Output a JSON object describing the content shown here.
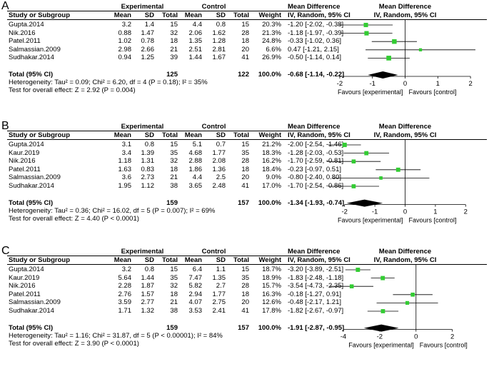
{
  "header": {
    "experimental": "Experimental",
    "control": "Control",
    "md_title": "Mean Difference",
    "study": "Study or Subgroup",
    "mean": "Mean",
    "sd": "SD",
    "total": "Total",
    "weight": "Weight",
    "method": "IV, Random, 95% CI"
  },
  "colors": {
    "marker": "#33cc33",
    "diamond": "#000000"
  },
  "chart_data": [
    {
      "type": "forest",
      "panel_label": "A",
      "rows": [
        {
          "study": "Gupta.2014",
          "e_mean": "3.2",
          "e_sd": "1.4",
          "e_total": "15",
          "c_mean": "4.4",
          "c_sd": "0.8",
          "c_total": "15",
          "weight": "20.3%",
          "ci_text": "-1.20 [-2.02, -0.38]",
          "md": -1.2,
          "lo": -2.02,
          "hi": -0.38
        },
        {
          "study": "Nik.2016",
          "e_mean": "0.88",
          "e_sd": "1.47",
          "e_total": "32",
          "c_mean": "2.06",
          "c_sd": "1.62",
          "c_total": "28",
          "weight": "21.3%",
          "ci_text": "-1.18 [-1.97, -0.39]",
          "md": -1.18,
          "lo": -1.97,
          "hi": -0.39
        },
        {
          "study": "Patel.2011",
          "e_mean": "1.02",
          "e_sd": "0.78",
          "e_total": "18",
          "c_mean": "1.35",
          "c_sd": "1.28",
          "c_total": "18",
          "weight": "24.8%",
          "ci_text": "-0.33 [-1.02, 0.36]",
          "md": -0.33,
          "lo": -1.02,
          "hi": 0.36
        },
        {
          "study": "Salmassian.2009",
          "e_mean": "2.98",
          "e_sd": "2.66",
          "e_total": "21",
          "c_mean": "2.51",
          "c_sd": "2.81",
          "c_total": "20",
          "weight": "6.6%",
          "ci_text": "0.47 [-1.21, 2.15]",
          "md": 0.47,
          "lo": -1.21,
          "hi": 2.15
        },
        {
          "study": "Sudhakar.2014",
          "e_mean": "0.94",
          "e_sd": "1.25",
          "e_total": "39",
          "c_mean": "1.44",
          "c_sd": "1.67",
          "c_total": "41",
          "weight": "26.9%",
          "ci_text": "-0.50 [-1.14, 0.14]",
          "md": -0.5,
          "lo": -1.14,
          "hi": 0.14
        }
      ],
      "total": {
        "label": "Total (95% CI)",
        "e_total": "125",
        "c_total": "122",
        "weight": "100.0%",
        "ci_text": "-0.68 [-1.14, -0.22]",
        "md": -0.68,
        "lo": -1.14,
        "hi": -0.22
      },
      "heterogeneity": "Heterogeneity: Tau² = 0.09; Chi² = 6.20, df = 4 (P = 0.18); I² = 35%",
      "overall_effect": "Test for overall effect: Z = 2.92 (P = 0.004)",
      "xlim": [
        -2.5,
        2.5
      ],
      "xticks": [
        -2,
        -1,
        0,
        1,
        2
      ],
      "xtick_labels": [
        "-2",
        "-1",
        "0",
        "1",
        "2"
      ],
      "favours_left": "Favours [experimental]",
      "favours_right": "Favours [control]"
    },
    {
      "type": "forest",
      "panel_label": "B",
      "rows": [
        {
          "study": "Gupta.2014",
          "e_mean": "3.1",
          "e_sd": "0.8",
          "e_total": "15",
          "c_mean": "5.1",
          "c_sd": "0.7",
          "c_total": "15",
          "weight": "21.2%",
          "ci_text": "-2.00 [-2.54, -1.46]",
          "md": -2.0,
          "lo": -2.54,
          "hi": -1.46
        },
        {
          "study": "Kaur.2019",
          "e_mean": "3.4",
          "e_sd": "1.39",
          "e_total": "35",
          "c_mean": "4.68",
          "c_sd": "1.77",
          "c_total": "35",
          "weight": "18.3%",
          "ci_text": "-1.28 [-2.03, -0.53]",
          "md": -1.28,
          "lo": -2.03,
          "hi": -0.53
        },
        {
          "study": "Nik.2016",
          "e_mean": "1.18",
          "e_sd": "1.31",
          "e_total": "32",
          "c_mean": "2.88",
          "c_sd": "2.08",
          "c_total": "28",
          "weight": "16.2%",
          "ci_text": "-1.70 [-2.59, -0.81]",
          "md": -1.7,
          "lo": -2.59,
          "hi": -0.81
        },
        {
          "study": "Patel.2011",
          "e_mean": "1.63",
          "e_sd": "0.83",
          "e_total": "18",
          "c_mean": "1.86",
          "c_sd": "1.36",
          "c_total": "18",
          "weight": "18.4%",
          "ci_text": "-0.23 [-0.97, 0.51]",
          "md": -0.23,
          "lo": -0.97,
          "hi": 0.51
        },
        {
          "study": "Salmassian.2009",
          "e_mean": "3.6",
          "e_sd": "2.73",
          "e_total": "21",
          "c_mean": "4.4",
          "c_sd": "2.5",
          "c_total": "20",
          "weight": "9.0%",
          "ci_text": "-0.80 [-2.40, 0.80]",
          "md": -0.8,
          "lo": -2.4,
          "hi": 0.8
        },
        {
          "study": "Sudhakar.2014",
          "e_mean": "1.95",
          "e_sd": "1.12",
          "e_total": "38",
          "c_mean": "3.65",
          "c_sd": "2.48",
          "c_total": "41",
          "weight": "17.0%",
          "ci_text": "-1.70 [-2.54, -0.86]",
          "md": -1.7,
          "lo": -2.54,
          "hi": -0.86
        }
      ],
      "total": {
        "label": "Total (95% CI)",
        "e_total": "159",
        "c_total": "157",
        "weight": "100.0%",
        "ci_text": "-1.34 [-1.93, -0.74]",
        "md": -1.34,
        "lo": -1.93,
        "hi": -0.74
      },
      "heterogeneity": "Heterogeneity: Tau² = 0.36; Chi² = 16.02, df = 5 (P = 0.007); I² = 69%",
      "overall_effect": "Test for overall effect: Z = 4.40 (P < 0.0001)",
      "xlim": [
        -2.7,
        2.7
      ],
      "xticks": [
        -2,
        -1,
        0,
        1,
        2
      ],
      "xtick_labels": [
        "-2",
        "-1",
        "0",
        "1",
        "2"
      ],
      "favours_left": "Favours [experimental]",
      "favours_right": "Favours [control]"
    },
    {
      "type": "forest",
      "panel_label": "C",
      "rows": [
        {
          "study": "Gupta.2014",
          "e_mean": "3.2",
          "e_sd": "0.8",
          "e_total": "15",
          "c_mean": "6.4",
          "c_sd": "1.1",
          "c_total": "15",
          "weight": "18.7%",
          "ci_text": "-3.20 [-3.89, -2.51]",
          "md": -3.2,
          "lo": -3.89,
          "hi": -2.51
        },
        {
          "study": "Kaur.2019",
          "e_mean": "5.64",
          "e_sd": "1.44",
          "e_total": "35",
          "c_mean": "7.47",
          "c_sd": "1.35",
          "c_total": "35",
          "weight": "18.9%",
          "ci_text": "-1.83 [-2.48, -1.18]",
          "md": -1.83,
          "lo": -2.48,
          "hi": -1.18
        },
        {
          "study": "Nik.2016",
          "e_mean": "2.28",
          "e_sd": "1.87",
          "e_total": "32",
          "c_mean": "5.82",
          "c_sd": "2.7",
          "c_total": "28",
          "weight": "15.7%",
          "ci_text": "-3.54 [-4.73, -2.35]",
          "md": -3.54,
          "lo": -4.73,
          "hi": -2.35
        },
        {
          "study": "Patel.2011",
          "e_mean": "2.76",
          "e_sd": "1.57",
          "e_total": "18",
          "c_mean": "2.94",
          "c_sd": "1.77",
          "c_total": "18",
          "weight": "16.3%",
          "ci_text": "-0.18 [-1.27, 0.91]",
          "md": -0.18,
          "lo": -1.27,
          "hi": 0.91
        },
        {
          "study": "Salmassian.2009",
          "e_mean": "3.59",
          "e_sd": "2.77",
          "e_total": "21",
          "c_mean": "4.07",
          "c_sd": "2.75",
          "c_total": "20",
          "weight": "12.6%",
          "ci_text": "-0.48 [-2.17, 1.21]",
          "md": -0.48,
          "lo": -2.17,
          "hi": 1.21
        },
        {
          "study": "Sudhakar.2014",
          "e_mean": "1.71",
          "e_sd": "1.32",
          "e_total": "38",
          "c_mean": "3.53",
          "c_sd": "2.41",
          "c_total": "41",
          "weight": "17.8%",
          "ci_text": "-1.82 [-2.67, -0.97]",
          "md": -1.82,
          "lo": -2.67,
          "hi": -0.97
        }
      ],
      "total": {
        "label": "Total (95% CI)",
        "e_total": "159",
        "c_total": "157",
        "weight": "100.0%",
        "ci_text": "-1.91 [-2.87, -0.95]",
        "md": -1.91,
        "lo": -2.87,
        "hi": -0.95
      },
      "heterogeneity": "Heterogeneity: Tau² = 1.16; Chi² = 31.87, df = 5 (P < 0.00001); I² = 84%",
      "overall_effect": "Test for overall effect: Z = 3.90 (P < 0.0001)",
      "xlim": [
        -5.1,
        3.9
      ],
      "xticks": [
        -4,
        -2,
        0,
        2
      ],
      "xtick_labels": [
        "-4",
        "-2",
        "0",
        "2"
      ],
      "favours_left": "Favours [experimental]",
      "favours_right": "Favours [control]"
    }
  ]
}
